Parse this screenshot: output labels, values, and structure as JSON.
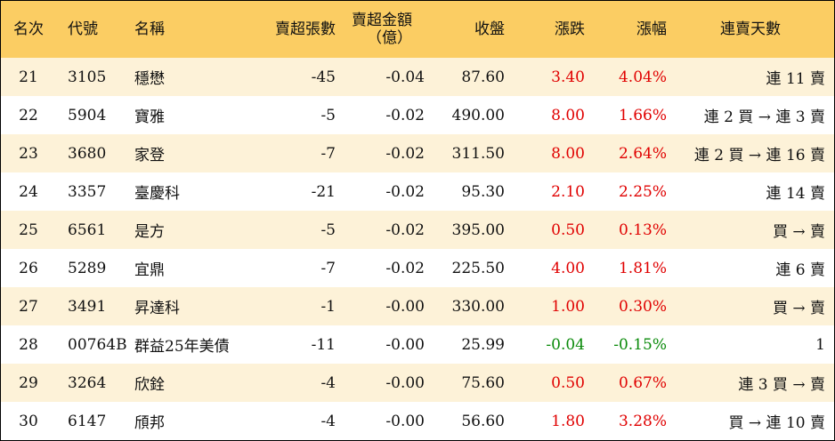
{
  "headers": {
    "rank": "名次",
    "code": "代號",
    "name": "名稱",
    "oversell_shares": "賣超張數",
    "oversell_amount_line1": "賣超金額",
    "oversell_amount_line2": "（億）",
    "close": "收盤",
    "change": "漲跌",
    "change_pct": "漲幅",
    "streak": "連賣天數"
  },
  "rows": [
    {
      "rank": "21",
      "code": "3105",
      "name": "穩懋",
      "shares": "-45",
      "amount": "-0.04",
      "close": "87.60",
      "change": "3.40",
      "pct": "4.04%",
      "dir": "up",
      "streak": "連 11 賣"
    },
    {
      "rank": "22",
      "code": "5904",
      "name": "寶雅",
      "shares": "-5",
      "amount": "-0.02",
      "close": "490.00",
      "change": "8.00",
      "pct": "1.66%",
      "dir": "up",
      "streak": "連 2 買 → 連 3 賣"
    },
    {
      "rank": "23",
      "code": "3680",
      "name": "家登",
      "shares": "-7",
      "amount": "-0.02",
      "close": "311.50",
      "change": "8.00",
      "pct": "2.64%",
      "dir": "up",
      "streak": "連 2 買 → 連 16 賣"
    },
    {
      "rank": "24",
      "code": "3357",
      "name": "臺慶科",
      "shares": "-21",
      "amount": "-0.02",
      "close": "95.30",
      "change": "2.10",
      "pct": "2.25%",
      "dir": "up",
      "streak": "連 14 賣"
    },
    {
      "rank": "25",
      "code": "6561",
      "name": "是方",
      "shares": "-5",
      "amount": "-0.02",
      "close": "395.00",
      "change": "0.50",
      "pct": "0.13%",
      "dir": "up",
      "streak": "買 → 賣"
    },
    {
      "rank": "26",
      "code": "5289",
      "name": "宜鼎",
      "shares": "-7",
      "amount": "-0.02",
      "close": "225.50",
      "change": "4.00",
      "pct": "1.81%",
      "dir": "up",
      "streak": "連 6 賣"
    },
    {
      "rank": "27",
      "code": "3491",
      "name": "昇達科",
      "shares": "-1",
      "amount": "-0.00",
      "close": "330.00",
      "change": "1.00",
      "pct": "0.30%",
      "dir": "up",
      "streak": "買 → 賣"
    },
    {
      "rank": "28",
      "code": "00764B",
      "name": "群益25年美債",
      "shares": "-11",
      "amount": "-0.00",
      "close": "25.99",
      "change": "-0.04",
      "pct": "-0.15%",
      "dir": "down",
      "streak": "1"
    },
    {
      "rank": "29",
      "code": "3264",
      "name": "欣銓",
      "shares": "-4",
      "amount": "-0.00",
      "close": "75.60",
      "change": "0.50",
      "pct": "0.67%",
      "dir": "up",
      "streak": "連 3 買 → 賣"
    },
    {
      "rank": "30",
      "code": "6147",
      "name": "頎邦",
      "shares": "-4",
      "amount": "-0.00",
      "close": "56.60",
      "change": "1.80",
      "pct": "3.28%",
      "dir": "up",
      "streak": "買 → 連 10 賣"
    }
  ],
  "colors": {
    "header_bg": "#fbcd63",
    "odd_row_bg": "#fdf2d8",
    "up": "#e00000",
    "down": "#0a8a0a"
  }
}
